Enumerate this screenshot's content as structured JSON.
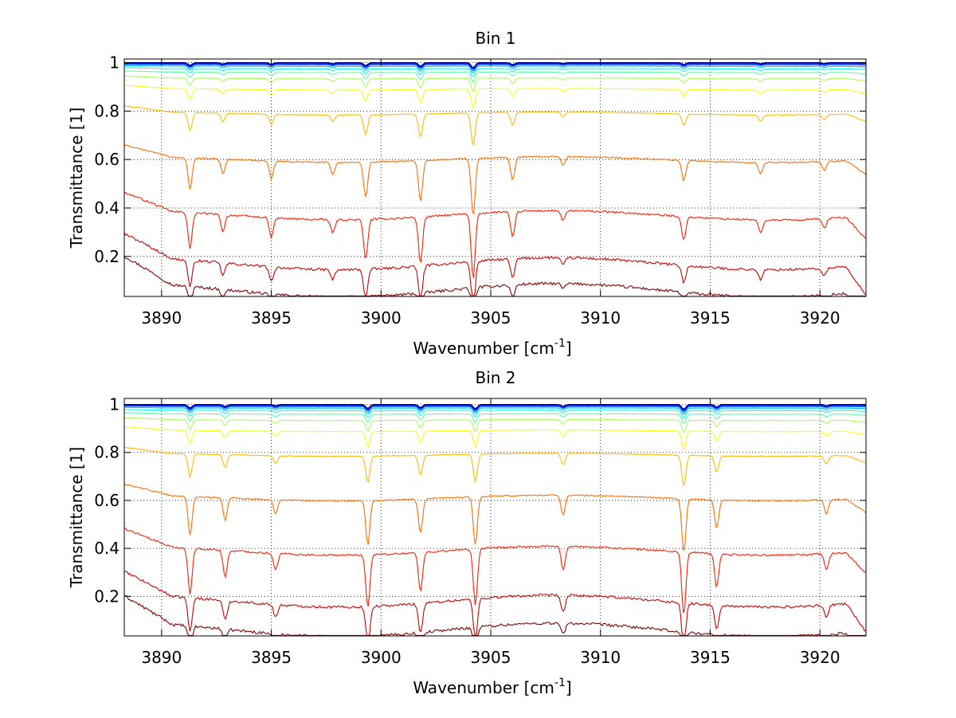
{
  "chart_data": [
    {
      "type": "line",
      "title": "Bin 1",
      "xlabel": "Wavenumber [cm",
      "xlabel_sup": "-1",
      "xlabel_tail": "]",
      "ylabel": "Transmittance [1]",
      "xlim": [
        3888.3,
        3922.1
      ],
      "ylim": [
        0.035,
        1.015
      ],
      "xticks": [
        3890,
        3895,
        3900,
        3905,
        3910,
        3915,
        3920
      ],
      "yticks": [
        0.2,
        0.4,
        0.6,
        0.8,
        1
      ],
      "ytick_labels": [
        "0.2",
        "0.4",
        "0.6",
        "0.8",
        "1"
      ],
      "grid": true,
      "colormap": "jet",
      "series_count": 14,
      "baselines": [
        0.06,
        0.17,
        0.37,
        0.6,
        0.79,
        0.89,
        0.935,
        0.96,
        0.975,
        0.985,
        0.991,
        0.995,
        0.998,
        1.0
      ],
      "absorption_lines": [
        {
          "x": 3891.3,
          "depth": 0.55
        },
        {
          "x": 3892.8,
          "depth": 0.25
        },
        {
          "x": 3895.0,
          "depth": 0.3
        },
        {
          "x": 3897.8,
          "depth": 0.2
        },
        {
          "x": 3899.3,
          "depth": 0.6
        },
        {
          "x": 3901.8,
          "depth": 0.7
        },
        {
          "x": 3904.2,
          "depth": 1.0
        },
        {
          "x": 3906.0,
          "depth": 0.4
        },
        {
          "x": 3908.3,
          "depth": 0.15
        },
        {
          "x": 3913.8,
          "depth": 0.35
        },
        {
          "x": 3917.3,
          "depth": 0.2
        },
        {
          "x": 3920.2,
          "depth": 0.15
        }
      ]
    },
    {
      "type": "line",
      "title": "Bin 2",
      "xlabel": "Wavenumber [cm",
      "xlabel_sup": "-1",
      "xlabel_tail": "]",
      "ylabel": "Transmittance [1]",
      "xlim": [
        3888.3,
        3922.1
      ],
      "ylim": [
        0.035,
        1.025
      ],
      "xticks": [
        3890,
        3895,
        3900,
        3905,
        3910,
        3915,
        3920
      ],
      "yticks": [
        0.2,
        0.4,
        0.6,
        0.8,
        1
      ],
      "ytick_labels": [
        "0.2",
        "0.4",
        "0.6",
        "0.8",
        "1"
      ],
      "grid": true,
      "colormap": "jet",
      "series_count": 14,
      "baselines": [
        0.06,
        0.18,
        0.39,
        0.61,
        0.79,
        0.89,
        0.935,
        0.96,
        0.975,
        0.985,
        0.991,
        0.995,
        0.998,
        1.0
      ],
      "absorption_lines": [
        {
          "x": 3891.3,
          "depth": 0.7
        },
        {
          "x": 3892.9,
          "depth": 0.4
        },
        {
          "x": 3895.2,
          "depth": 0.25
        },
        {
          "x": 3899.4,
          "depth": 0.8
        },
        {
          "x": 3901.8,
          "depth": 0.6
        },
        {
          "x": 3904.3,
          "depth": 0.85
        },
        {
          "x": 3908.3,
          "depth": 0.35
        },
        {
          "x": 3913.8,
          "depth": 0.95
        },
        {
          "x": 3915.3,
          "depth": 0.5
        },
        {
          "x": 3920.3,
          "depth": 0.25
        }
      ]
    }
  ]
}
